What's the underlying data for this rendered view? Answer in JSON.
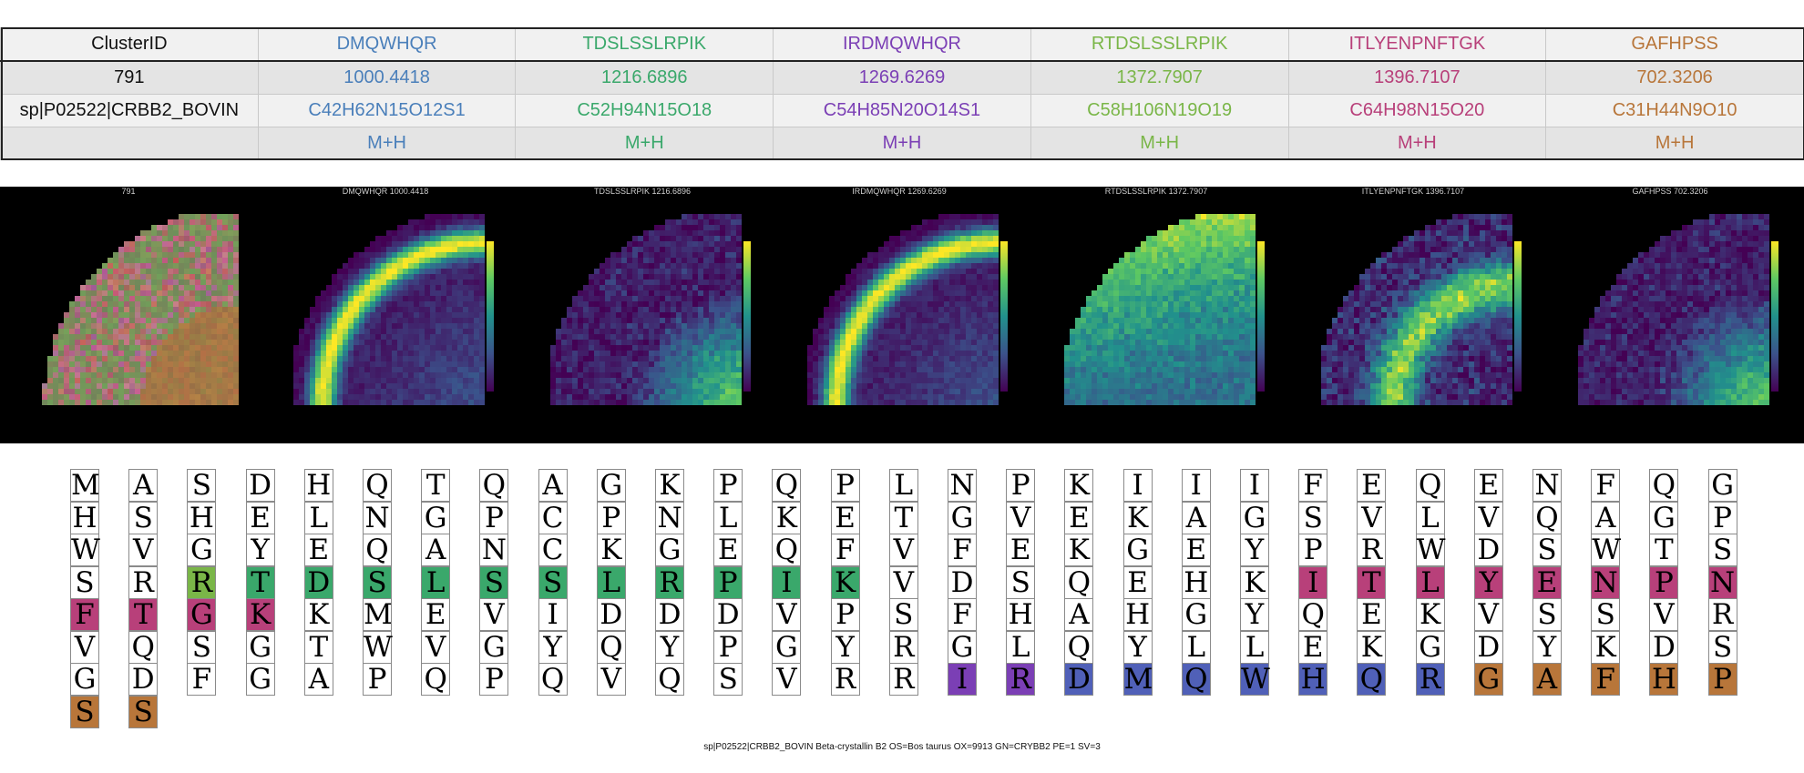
{
  "table": {
    "rows": [
      [
        "ClusterID",
        "DMQWHQR",
        "TDSLSSLRPIK",
        "IRDMQWHQR",
        "RTDSLSSLRPIK",
        "ITLYENPNFTGK",
        "GAFHPSS"
      ],
      [
        "791",
        "1000.4418",
        "1216.6896",
        "1269.6269",
        "1372.7907",
        "1396.7107",
        "702.3206"
      ],
      [
        "sp|P02522|CRBB2_BOVIN",
        "C42H62N15O12S1",
        "C52H94N15O18",
        "C54H85N20O14S1",
        "C58H106N19O19",
        "C64H98N15O20",
        "C31H44N9O10"
      ],
      [
        "",
        "M+H",
        "M+H",
        "M+H",
        "M+H",
        "M+H",
        "M+H"
      ]
    ],
    "colors": [
      "#111111",
      "#4a7fba",
      "#3aa86b",
      "#7b3fb5",
      "#7ab648",
      "#b8407a",
      "#b8763a"
    ]
  },
  "panels": [
    {
      "title": "791",
      "kind": "rgb"
    },
    {
      "title": "DMQWHQR 1000.4418",
      "kind": "ring"
    },
    {
      "title": "TDSLSSLRPIK 1216.6896",
      "kind": "core"
    },
    {
      "title": "IRDMQWHQR 1269.6269",
      "kind": "ring"
    },
    {
      "title": "RTDSLSSLRPIK 1372.7907",
      "kind": "top"
    },
    {
      "title": "ITLYENPNFTGK 1396.7107",
      "kind": "mid"
    },
    {
      "title": "GAFHPSS 702.3206",
      "kind": "core"
    }
  ],
  "sequence": {
    "columns": [
      [
        "M",
        "H",
        "W",
        "S",
        "F",
        "V",
        "G",
        "S"
      ],
      [
        "A",
        "S",
        "V",
        "R",
        "T",
        "Q",
        "D",
        "S"
      ],
      [
        "S",
        "H",
        "G",
        "R",
        "G",
        "S",
        "F"
      ],
      [
        "D",
        "E",
        "Y",
        "T",
        "K",
        "G",
        "G"
      ],
      [
        "H",
        "L",
        "E",
        "D",
        "K",
        "T",
        "A"
      ],
      [
        "Q",
        "N",
        "Q",
        "S",
        "M",
        "W",
        "P"
      ],
      [
        "T",
        "G",
        "A",
        "L",
        "E",
        "V",
        "Q"
      ],
      [
        "Q",
        "P",
        "N",
        "S",
        "V",
        "G",
        "P"
      ],
      [
        "A",
        "C",
        "C",
        "S",
        "I",
        "Y",
        "Q"
      ],
      [
        "G",
        "P",
        "K",
        "L",
        "D",
        "Q",
        "V"
      ],
      [
        "K",
        "N",
        "G",
        "R",
        "D",
        "Y",
        "Q"
      ],
      [
        "P",
        "L",
        "E",
        "P",
        "D",
        "P",
        "S"
      ],
      [
        "Q",
        "K",
        "Q",
        "I",
        "V",
        "G",
        "V"
      ],
      [
        "P",
        "E",
        "F",
        "K",
        "P",
        "Y",
        "R"
      ],
      [
        "L",
        "T",
        "V",
        "V",
        "S",
        "R",
        "R"
      ],
      [
        "N",
        "G",
        "F",
        "D",
        "F",
        "G",
        "I"
      ],
      [
        "P",
        "V",
        "E",
        "S",
        "H",
        "L",
        "R"
      ],
      [
        "K",
        "E",
        "K",
        "Q",
        "A",
        "Q",
        "D"
      ],
      [
        "I",
        "K",
        "G",
        "E",
        "H",
        "Y",
        "M"
      ],
      [
        "I",
        "A",
        "E",
        "H",
        "G",
        "L",
        "Q"
      ],
      [
        "I",
        "G",
        "Y",
        "K",
        "Y",
        "L",
        "W"
      ],
      [
        "F",
        "S",
        "P",
        "I",
        "Q",
        "E",
        "H"
      ],
      [
        "E",
        "V",
        "R",
        "T",
        "E",
        "K",
        "Q"
      ],
      [
        "Q",
        "L",
        "W",
        "L",
        "K",
        "G",
        "R"
      ],
      [
        "E",
        "V",
        "D",
        "Y",
        "V",
        "D",
        "G"
      ],
      [
        "N",
        "Q",
        "S",
        "E",
        "S",
        "Y",
        "A"
      ],
      [
        "F",
        "A",
        "W",
        "N",
        "S",
        "K",
        "F"
      ],
      [
        "Q",
        "G",
        "T",
        "P",
        "V",
        "D",
        "H"
      ],
      [
        "G",
        "P",
        "S",
        "N",
        "R",
        "S",
        "P"
      ]
    ],
    "highlights": [
      {
        "col": 0,
        "row": 4,
        "color": "#b8407a"
      },
      {
        "col": 0,
        "row": 7,
        "color": "#b8763a"
      },
      {
        "col": 1,
        "row": 4,
        "color": "#b8407a"
      },
      {
        "col": 1,
        "row": 7,
        "color": "#b8763a"
      },
      {
        "col": 2,
        "row": 3,
        "color": "#7ab648"
      },
      {
        "col": 2,
        "row": 4,
        "color": "#b8407a"
      },
      {
        "col": 3,
        "row": 3,
        "color": "#3aa86b"
      },
      {
        "col": 3,
        "row": 4,
        "color": "#b8407a"
      },
      {
        "col": 4,
        "row": 3,
        "color": "#3aa86b"
      },
      {
        "col": 5,
        "row": 3,
        "color": "#3aa86b"
      },
      {
        "col": 6,
        "row": 3,
        "color": "#3aa86b"
      },
      {
        "col": 7,
        "row": 3,
        "color": "#3aa86b"
      },
      {
        "col": 8,
        "row": 3,
        "color": "#3aa86b"
      },
      {
        "col": 9,
        "row": 3,
        "color": "#3aa86b"
      },
      {
        "col": 10,
        "row": 3,
        "color": "#3aa86b"
      },
      {
        "col": 11,
        "row": 3,
        "color": "#3aa86b"
      },
      {
        "col": 12,
        "row": 3,
        "color": "#3aa86b"
      },
      {
        "col": 13,
        "row": 3,
        "color": "#3aa86b"
      },
      {
        "col": 15,
        "row": 6,
        "color": "#7b3fb5"
      },
      {
        "col": 16,
        "row": 6,
        "color": "#7b3fb5"
      },
      {
        "col": 17,
        "row": 6,
        "color": "#5060b8"
      },
      {
        "col": 18,
        "row": 6,
        "color": "#5060b8"
      },
      {
        "col": 19,
        "row": 6,
        "color": "#5060b8"
      },
      {
        "col": 20,
        "row": 6,
        "color": "#5060b8"
      },
      {
        "col": 21,
        "row": 3,
        "color": "#b8407a"
      },
      {
        "col": 21,
        "row": 6,
        "color": "#5060b8"
      },
      {
        "col": 22,
        "row": 3,
        "color": "#b8407a"
      },
      {
        "col": 22,
        "row": 6,
        "color": "#5060b8"
      },
      {
        "col": 23,
        "row": 3,
        "color": "#b8407a"
      },
      {
        "col": 23,
        "row": 6,
        "color": "#5060b8"
      },
      {
        "col": 24,
        "row": 3,
        "color": "#b8407a"
      },
      {
        "col": 24,
        "row": 6,
        "color": "#b8763a"
      },
      {
        "col": 25,
        "row": 3,
        "color": "#b8407a"
      },
      {
        "col": 25,
        "row": 6,
        "color": "#b8763a"
      },
      {
        "col": 26,
        "row": 3,
        "color": "#b8407a"
      },
      {
        "col": 26,
        "row": 6,
        "color": "#b8763a"
      },
      {
        "col": 27,
        "row": 3,
        "color": "#b8407a"
      },
      {
        "col": 27,
        "row": 6,
        "color": "#b8763a"
      },
      {
        "col": 28,
        "row": 3,
        "color": "#b8407a"
      },
      {
        "col": 28,
        "row": 6,
        "color": "#b8763a"
      }
    ],
    "footer": "sp|P02522|CRBB2_BOVIN Beta-crystallin B2 OS=Bos taurus OX=9913 GN=CRYBB2 PE=1 SV=3"
  }
}
